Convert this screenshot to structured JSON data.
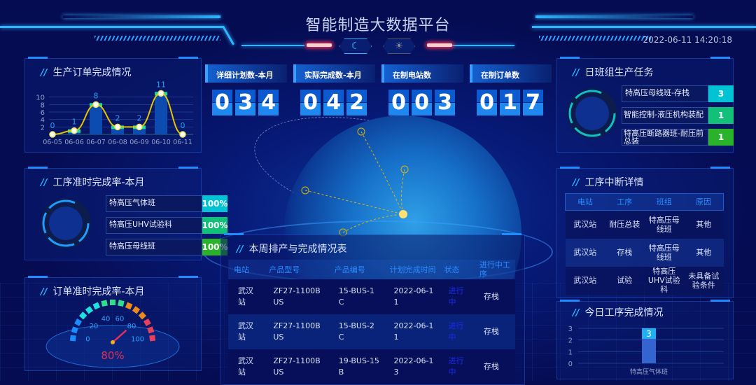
{
  "header": {
    "title": "智能制造大数据平台",
    "datetime": "2022-06-11 14:20:18",
    "theme_buttons": [
      {
        "icon": "moon-icon",
        "glyph": "☾"
      },
      {
        "icon": "sun-icon",
        "glyph": "☀"
      }
    ]
  },
  "colors": {
    "accent": "#32b4ff",
    "cyan": "#00c4d4",
    "green": "#12c07a",
    "lime": "#2ab32a",
    "line": "#e2c400",
    "gauge_text": "#e0305a"
  },
  "order_chart": {
    "title": "生产订单完成情况"
  },
  "chart_data": [
    {
      "type": "bar",
      "title": "生产订单完成情况",
      "categories": [
        "06-05",
        "06-06",
        "06-07",
        "06-08",
        "06-09",
        "06-10",
        "06-11"
      ],
      "values": [
        0,
        1,
        8,
        2,
        2,
        11,
        0
      ],
      "yticks": [
        "2",
        "4",
        "6",
        "8",
        "10"
      ],
      "ylim": [
        0,
        12
      ],
      "overlay": "line"
    },
    {
      "type": "bar",
      "title": "今日工序完成情况",
      "categories": [
        "特高压气体班"
      ],
      "values": [
        3
      ],
      "yticks": [
        "0",
        "1",
        "2",
        "3"
      ],
      "ylim": [
        0,
        3
      ]
    }
  ],
  "process_rate": {
    "title": "工序准时完成率-本月",
    "items": [
      {
        "label": "特高压气体班",
        "value": "100%"
      },
      {
        "label": "特高压UHV试验科",
        "value": "100%"
      },
      {
        "label": "特高压母线班",
        "value": "100%"
      }
    ]
  },
  "order_rate": {
    "title": "订单准时完成率-本月",
    "ticks": [
      "0",
      "20",
      "40",
      "60",
      "80",
      "100"
    ],
    "value": 80,
    "value_label": "80%"
  },
  "counters": [
    {
      "label": "详细计划数-本月",
      "digits": [
        "0",
        "3",
        "4"
      ]
    },
    {
      "label": "实际完成数-本月",
      "digits": [
        "0",
        "4",
        "2"
      ]
    },
    {
      "label": "在制电站数",
      "digits": [
        "0",
        "0",
        "3"
      ]
    },
    {
      "label": "在制订单数",
      "digits": [
        "0",
        "1",
        "7"
      ]
    }
  ],
  "weekly": {
    "title": "本周排产与完成情况表",
    "headers": [
      "电站",
      "产品型号",
      "产品编号",
      "计划完成时间",
      "状态",
      "进行中工序"
    ],
    "rows": [
      [
        "武汉站",
        "ZF27-1100BUS",
        "15-BUS-1C",
        "2022-06-11",
        "进行中",
        "存栈"
      ],
      [
        "武汉站",
        "ZF27-1100BUS",
        "15-BUS-2C",
        "2022-06-11",
        "进行中",
        "存栈"
      ],
      [
        "武汉站",
        "ZF27-1100BUS",
        "19-BUS-15B",
        "2022-06-13",
        "进行中",
        "存栈"
      ]
    ]
  },
  "team_tasks": {
    "title": "日班组生产任务",
    "items": [
      {
        "label": "特高压母线班-存栈",
        "value": "3"
      },
      {
        "label": "智能控制-液压机构装配",
        "value": "1"
      },
      {
        "label": "特高压断路器班-耐压前总装",
        "value": "1"
      }
    ]
  },
  "interrupt": {
    "title": "工序中断详情",
    "headers": [
      "电站",
      "工序",
      "班组",
      "原因"
    ],
    "rows": [
      [
        "武汉站",
        "耐压总装",
        "特高压母线班",
        "其他"
      ],
      [
        "武汉站",
        "存栈",
        "特高压母线班",
        "其他"
      ],
      [
        "武汉站",
        "试验",
        "特高压UHV试验科",
        "未具备试验条件"
      ]
    ]
  },
  "today": {
    "title": "今日工序完成情况"
  }
}
